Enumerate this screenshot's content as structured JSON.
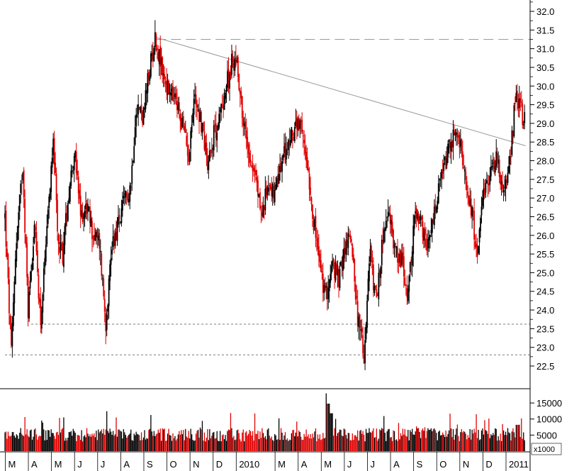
{
  "colors": {
    "up": "#000000",
    "down": "#e00000",
    "trendline": "#9a9a9a",
    "support": "#7a7a7a",
    "resistance": "#9a9a9a"
  },
  "chart_data": {
    "type": "candlestick",
    "price_axis": {
      "range": [
        22.0,
        32.25
      ],
      "ticks": [
        "22.5",
        "23.0",
        "23.5",
        "24.0",
        "24.5",
        "25.0",
        "25.5",
        "26.0",
        "26.5",
        "27.0",
        "27.5",
        "28.0",
        "28.5",
        "29.0",
        "29.5",
        "30.0",
        "30.5",
        "31.0",
        "31.5",
        "32.0"
      ]
    },
    "volume_axis": {
      "range": [
        0,
        19000
      ],
      "ticks": [
        "5000",
        "10000",
        "15000"
      ],
      "multiplier_label": "x1000"
    },
    "time_axis": {
      "range_weeks": [
        0,
        96
      ],
      "labels": [
        {
          "text": "M",
          "week": 0.6
        },
        {
          "text": "A",
          "week": 5.0
        },
        {
          "text": "M",
          "week": 9.4
        },
        {
          "text": "J",
          "week": 13.8
        },
        {
          "text": "J",
          "week": 18.2
        },
        {
          "text": "A",
          "week": 22.6
        },
        {
          "text": "S",
          "week": 27.0
        },
        {
          "text": "O",
          "week": 31.4
        },
        {
          "text": "N",
          "week": 35.8
        },
        {
          "text": "D",
          "week": 40.2
        },
        {
          "text": "2010",
          "week": 44.6
        },
        {
          "text": "M",
          "week": 52.0
        },
        {
          "text": "A",
          "week": 56.4
        },
        {
          "text": "M",
          "week": 60.8
        },
        {
          "text": "J",
          "week": 65.2
        },
        {
          "text": "J",
          "week": 69.6
        },
        {
          "text": "A",
          "week": 74.0
        },
        {
          "text": "S",
          "week": 78.4
        },
        {
          "text": "O",
          "week": 82.8
        },
        {
          "text": "N",
          "week": 87.2
        },
        {
          "text": "D",
          "week": 91.6
        },
        {
          "text": "2011",
          "week": 96.0
        }
      ]
    },
    "price_path": [
      [
        0,
        26.5
      ],
      [
        1.2,
        22.8
      ],
      [
        2,
        25.5
      ],
      [
        3.4,
        27.9
      ],
      [
        4.4,
        24.0
      ],
      [
        5.6,
        26.3
      ],
      [
        6.8,
        23.7
      ],
      [
        8,
        26.0
      ],
      [
        9.2,
        28.8
      ],
      [
        10,
        26.0
      ],
      [
        11,
        25.5
      ],
      [
        12,
        27.0
      ],
      [
        13.2,
        28.3
      ],
      [
        14.4,
        26.5
      ],
      [
        15.6,
        26.8
      ],
      [
        16.8,
        26.0
      ],
      [
        18,
        25.8
      ],
      [
        19.2,
        23.7
      ],
      [
        20.4,
        25.8
      ],
      [
        21.6,
        26.3
      ],
      [
        22.8,
        26.9
      ],
      [
        24,
        27.4
      ],
      [
        25,
        29.5
      ],
      [
        26.4,
        29.2
      ],
      [
        27.4,
        30.3
      ],
      [
        28.6,
        31.3
      ],
      [
        30,
        30.4
      ],
      [
        31.2,
        29.8
      ],
      [
        32.4,
        29.6
      ],
      [
        33.6,
        29.1
      ],
      [
        35,
        28.2
      ],
      [
        36.2,
        29.8
      ],
      [
        37.4,
        29.0
      ],
      [
        38.6,
        28.0
      ],
      [
        39.8,
        28.7
      ],
      [
        40.8,
        29.1
      ],
      [
        42,
        29.9
      ],
      [
        43.2,
        30.6
      ],
      [
        44.2,
        30.7
      ],
      [
        45.4,
        29.0
      ],
      [
        46.6,
        28.2
      ],
      [
        47.8,
        27.5
      ],
      [
        49,
        26.5
      ],
      [
        50.2,
        27.5
      ],
      [
        51.4,
        27.0
      ],
      [
        52.8,
        28.0
      ],
      [
        54,
        28.4
      ],
      [
        55.2,
        28.9
      ],
      [
        56.4,
        28.8
      ],
      [
        57.6,
        28.0
      ],
      [
        58.8,
        26.4
      ],
      [
        60,
        25.2
      ],
      [
        61,
        24.3
      ],
      [
        62.4,
        25.2
      ],
      [
        63.6,
        24.8
      ],
      [
        64.8,
        25.7
      ],
      [
        66,
        26.0
      ],
      [
        67.2,
        23.8
      ],
      [
        68.4,
        22.8
      ],
      [
        69.6,
        25.5
      ],
      [
        70.8,
        24.1
      ],
      [
        72,
        26.0
      ],
      [
        73.2,
        26.5
      ],
      [
        74.4,
        25.6
      ],
      [
        75.6,
        25.3
      ],
      [
        76.8,
        24.3
      ],
      [
        78,
        26.5
      ],
      [
        79.2,
        26.3
      ],
      [
        80.4,
        25.5
      ],
      [
        81.6,
        26.4
      ],
      [
        82.8,
        27.3
      ],
      [
        84,
        28.0
      ],
      [
        85.2,
        28.6
      ],
      [
        86.4,
        28.7
      ],
      [
        87.6,
        27.5
      ],
      [
        88.8,
        26.8
      ],
      [
        90,
        25.5
      ],
      [
        91.2,
        27.0
      ],
      [
        92.4,
        27.6
      ],
      [
        93.6,
        28.2
      ],
      [
        94.8,
        27.3
      ],
      [
        95.6,
        27.2
      ],
      [
        96.6,
        28.6
      ],
      [
        97.4,
        29.9
      ],
      [
        98.4,
        29.3
      ],
      [
        99.2,
        29.0
      ]
    ],
    "annotations": [
      {
        "kind": "resistance",
        "price": 31.25,
        "week_start": 28.8,
        "week_end": 99.0
      },
      {
        "kind": "trendline",
        "from": [
          28.8,
          31.3
        ],
        "to": [
          99.2,
          28.4
        ]
      },
      {
        "kind": "support",
        "price": 23.62,
        "week_start": 5.0,
        "week_end": 99.0
      },
      {
        "kind": "support",
        "price": 22.8,
        "week_start": 0.0,
        "week_end": 99.0
      }
    ]
  }
}
